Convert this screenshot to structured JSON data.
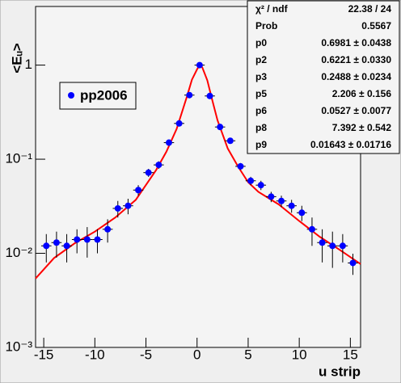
{
  "chart_data": {
    "type": "scatter",
    "xlabel": "u strip",
    "ylabel": "<Eᵤ>",
    "xlim": [
      -15.8,
      16.0
    ],
    "xticks": [
      -15,
      -10,
      -5,
      0,
      5,
      10,
      15
    ],
    "ylim": [
      0.001,
      4.2
    ],
    "log_y": true,
    "yticks": [
      {
        "value": 0.001,
        "label": "10⁻³"
      },
      {
        "value": 0.01,
        "label": "10⁻²"
      },
      {
        "value": 0.1,
        "label": "10⁻¹"
      },
      1
    ],
    "legend": "upper left",
    "series": [
      {
        "name": "pp2006",
        "color": "#0000ff",
        "x": [
          -14.75,
          -13.75,
          -12.75,
          -11.75,
          -10.75,
          -9.75,
          -8.75,
          -7.75,
          -6.75,
          -5.75,
          -4.75,
          -3.75,
          -2.75,
          -1.75,
          -0.75,
          0.25,
          1.25,
          2.25,
          3.25,
          4.25,
          5.25,
          6.25,
          7.25,
          8.25,
          9.25,
          10.25,
          11.25,
          12.25,
          13.25,
          14.25,
          15.25
        ],
        "values": [
          0.012,
          0.013,
          0.012,
          0.014,
          0.014,
          0.014,
          0.018,
          0.03,
          0.032,
          0.047,
          0.072,
          0.087,
          0.15,
          0.24,
          0.48,
          1.0,
          0.47,
          0.22,
          0.157,
          0.084,
          0.059,
          0.053,
          0.04,
          0.036,
          0.032,
          0.027,
          0.018,
          0.013,
          0.012,
          0.012,
          0.0079
        ],
        "errors": [
          0.004,
          0.004,
          0.004,
          0.004,
          0.005,
          0.004,
          0.005,
          0.006,
          0.006,
          0.006,
          0.007,
          0.008,
          0.01,
          0.01,
          0.02,
          0.02,
          0.02,
          0.01,
          0.01,
          0.007,
          0.006,
          0.006,
          0.005,
          0.005,
          0.005,
          0.005,
          0.006,
          0.005,
          0.005,
          0.004,
          0.002
        ]
      }
    ],
    "fit": {
      "color": "#ff0000",
      "x": [
        -15.8,
        -14,
        -12,
        -10,
        -8,
        -6,
        -4,
        -3,
        -2,
        -1,
        -0.5,
        0,
        0.25,
        0.5,
        1,
        1.5,
        2,
        3,
        4,
        5,
        6,
        8,
        10,
        12,
        14,
        16
      ],
      "values": [
        0.0054,
        0.0089,
        0.0127,
        0.017,
        0.024,
        0.037,
        0.077,
        0.12,
        0.21,
        0.46,
        0.7,
        0.9,
        1.0,
        0.95,
        0.69,
        0.42,
        0.26,
        0.13,
        0.084,
        0.057,
        0.045,
        0.033,
        0.022,
        0.015,
        0.0108,
        0.0077
      ]
    },
    "stats": [
      [
        "χ² / ndf",
        "22.38 / 24"
      ],
      [
        "Prob",
        "0.5567"
      ],
      [
        "p0",
        "0.6981 ± 0.0438"
      ],
      [
        "p2",
        "0.6221 ± 0.0330"
      ],
      [
        "p3",
        "0.2488 ± 0.0234"
      ],
      [
        "p5",
        "2.206 ± 0.156"
      ],
      [
        "p6",
        "0.0527 ± 0.0077"
      ],
      [
        "p8",
        "7.392 ± 0.542"
      ],
      [
        "p9",
        "0.01643 ± 0.01716"
      ]
    ]
  }
}
